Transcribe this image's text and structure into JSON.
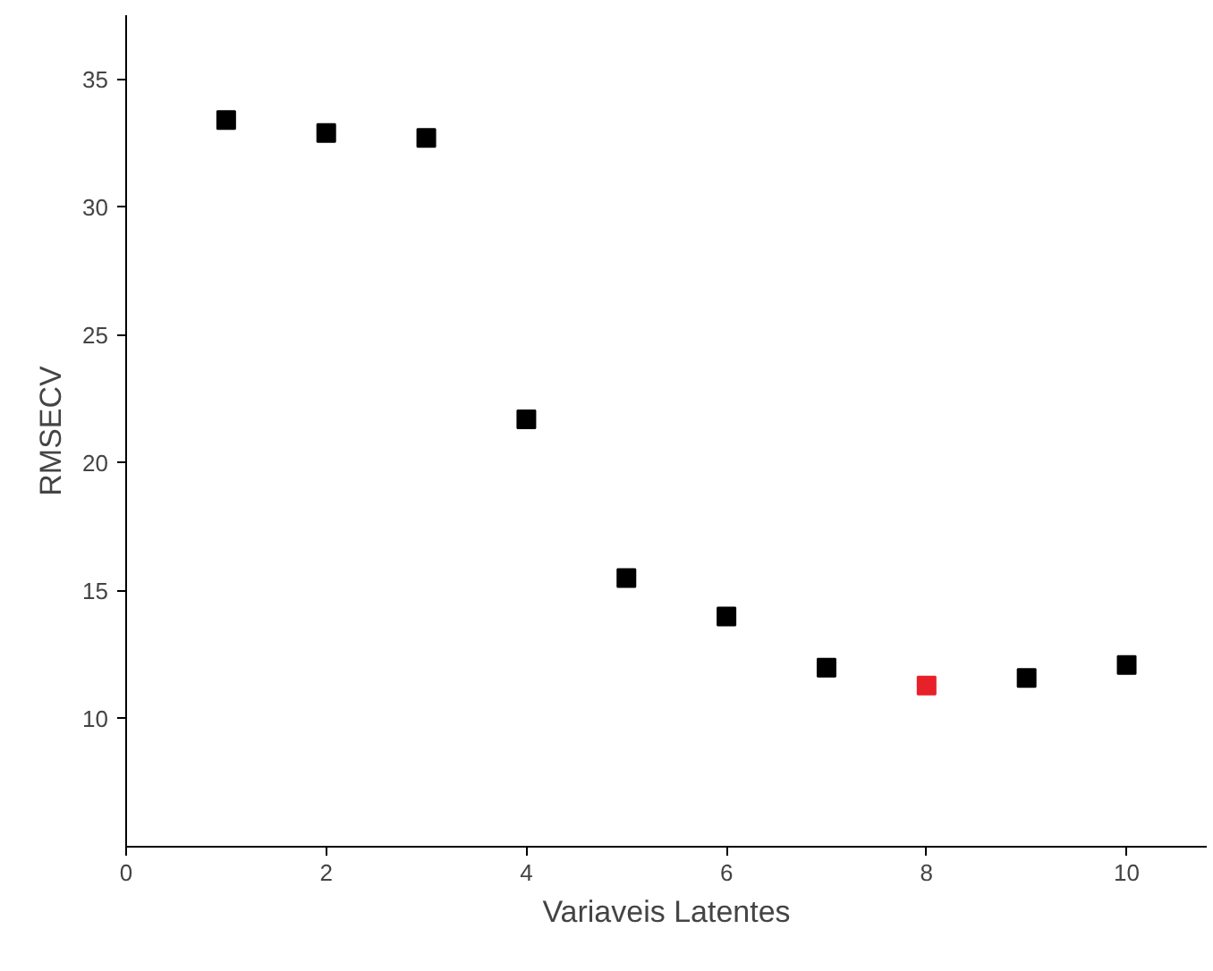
{
  "chart_data": {
    "type": "scatter",
    "xlabel": "Variaveis Latentes",
    "ylabel": "RMSECV",
    "x": [
      1,
      2,
      3,
      4,
      5,
      6,
      7,
      8,
      9,
      10
    ],
    "values": [
      33.4,
      32.9,
      32.7,
      21.7,
      15.5,
      14.0,
      12.0,
      11.3,
      11.6,
      12.1
    ],
    "colors": [
      "#000000",
      "#000000",
      "#000000",
      "#000000",
      "#000000",
      "#000000",
      "#000000",
      "#e8202a",
      "#000000",
      "#000000"
    ],
    "marker": "square",
    "xlim": [
      0,
      10.8
    ],
    "ylim": [
      5,
      37.5
    ],
    "xticks": [
      0,
      2,
      4,
      6,
      8,
      10
    ],
    "yticks": [
      10,
      15,
      20,
      25,
      30,
      35
    ],
    "grid": false
  }
}
